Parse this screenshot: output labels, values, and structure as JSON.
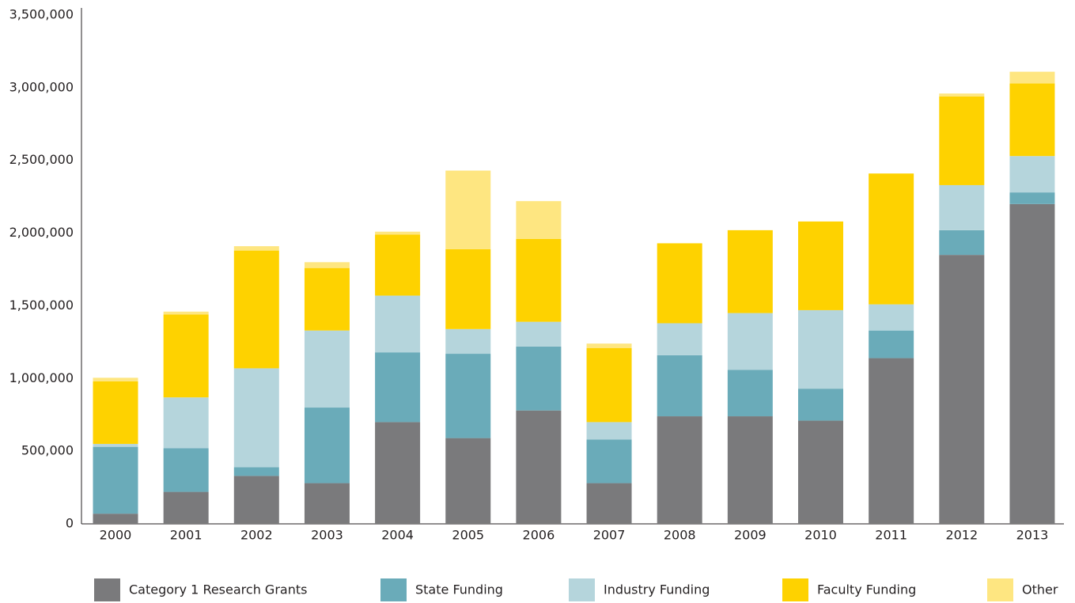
{
  "chart_data": {
    "type": "stacked_bar",
    "categories": [
      "2000",
      "2001",
      "2002",
      "2003",
      "2004",
      "2005",
      "2006",
      "2007",
      "2008",
      "2009",
      "2010",
      "2011",
      "2012",
      "2013"
    ],
    "series": [
      {
        "name": "Category 1 Research Grants",
        "color": "#7a7a7c",
        "values": [
          70000,
          220000,
          330000,
          280000,
          700000,
          590000,
          780000,
          280000,
          740000,
          740000,
          710000,
          1140000,
          1850000,
          2200000
        ]
      },
      {
        "name": "State Funding",
        "color": "#6aabb9",
        "values": [
          460000,
          300000,
          60000,
          520000,
          480000,
          580000,
          440000,
          300000,
          420000,
          320000,
          220000,
          190000,
          170000,
          80000
        ]
      },
      {
        "name": "Industry Funding",
        "color": "#b5d5dc",
        "values": [
          20000,
          350000,
          680000,
          530000,
          390000,
          170000,
          170000,
          120000,
          220000,
          390000,
          540000,
          180000,
          310000,
          250000
        ]
      },
      {
        "name": "Faculty Funding",
        "color": "#fed200",
        "values": [
          430000,
          570000,
          810000,
          430000,
          420000,
          550000,
          570000,
          510000,
          550000,
          570000,
          610000,
          900000,
          610000,
          500000
        ]
      },
      {
        "name": "Other",
        "color": "#fee681",
        "values": [
          25000,
          20000,
          30000,
          40000,
          20000,
          540000,
          260000,
          30000,
          0,
          0,
          0,
          0,
          20000,
          80000
        ]
      }
    ],
    "ylim": [
      0,
      3500000
    ],
    "yticks": [
      0,
      {
        "value": 500000,
        "label": "500,000"
      },
      {
        "value": 1000000,
        "label": "1,000,000"
      },
      {
        "value": 1500000,
        "label": "1,500,000"
      },
      {
        "value": 2000000,
        "label": "2,000,000"
      },
      {
        "value": 2500000,
        "label": "2,500,000"
      },
      {
        "value": 3000000,
        "label": "3,000,000"
      },
      {
        "value": 3500000,
        "label": "3,500,000"
      }
    ],
    "legend": "bottom"
  }
}
